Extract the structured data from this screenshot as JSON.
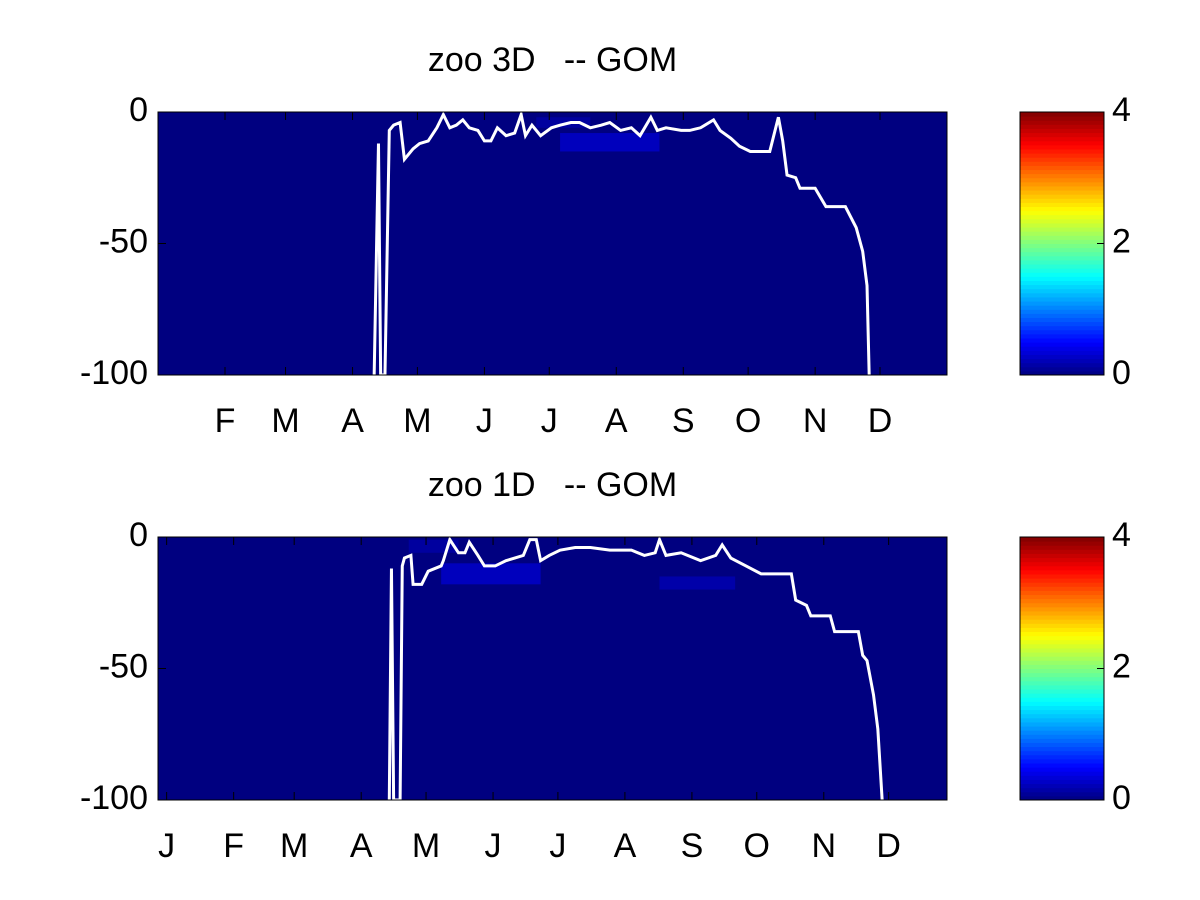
{
  "chart_data": [
    {
      "type": "heatmap",
      "title": "zoo 3D   -- GOM",
      "xlim": [
        0,
        365
      ],
      "xticks": [
        {
          "value": 31,
          "label": "F"
        },
        {
          "value": 59,
          "label": "M"
        },
        {
          "value": 90,
          "label": "A"
        },
        {
          "value": 120,
          "label": "M"
        },
        {
          "value": 151,
          "label": "J"
        },
        {
          "value": 181,
          "label": "J"
        },
        {
          "value": 212,
          "label": "A"
        },
        {
          "value": 243,
          "label": "S"
        },
        {
          "value": 273,
          "label": "O"
        },
        {
          "value": 304,
          "label": "N"
        },
        {
          "value": 334,
          "label": "D"
        }
      ],
      "ylim": [
        -100,
        0
      ],
      "yticks": [
        -100,
        -50,
        0
      ],
      "field": {
        "base": 0,
        "patches": [
          {
            "x": [
              186,
              232
            ],
            "y": [
              -15,
              -8
            ],
            "value": 0.3
          },
          {
            "x": [
              175,
              200
            ],
            "y": [
              -6,
              -2
            ],
            "value": 0.15
          }
        ]
      },
      "colorbar": {
        "colormap": "jet",
        "clim": [
          0,
          4
        ],
        "ticks": [
          0,
          2,
          4
        ]
      },
      "series": [
        {
          "color": "#ffffff",
          "x": [
            100,
            102,
            103,
            105,
            107,
            109,
            112,
            114,
            118,
            121,
            125,
            129,
            132,
            135,
            138,
            141,
            144,
            148,
            151,
            154,
            157,
            161,
            165,
            168,
            170,
            173,
            177,
            182,
            186,
            191,
            195,
            200,
            205,
            209,
            214,
            219,
            223,
            228,
            231,
            235,
            242,
            246,
            251,
            257,
            260,
            265,
            269,
            274,
            283,
            287,
            289,
            291,
            295,
            297,
            304,
            309,
            318,
            323,
            326,
            328,
            329
          ],
          "values": [
            -100,
            -12,
            -100,
            -100,
            -7,
            -5,
            -4,
            -18,
            -14,
            -12,
            -11,
            -6,
            -1,
            -6,
            -5,
            -3,
            -6,
            -7,
            -11,
            -11,
            -6,
            -9,
            -8,
            -1,
            -9,
            -5,
            -9,
            -6,
            -5,
            -4,
            -4,
            -6,
            -5,
            -4,
            -7,
            -6,
            -9,
            -2,
            -7,
            -6,
            -7,
            -7,
            -6,
            -3,
            -7,
            -10,
            -13,
            -15,
            -15,
            -2,
            -11,
            -24,
            -25,
            -29,
            -29,
            -36,
            -36,
            -44,
            -53,
            -66,
            -100
          ]
        }
      ]
    },
    {
      "type": "heatmap",
      "title": "zoo 1D   -- GOM",
      "xlim": [
        -4,
        361
      ],
      "xticks": [
        {
          "value": 0,
          "label": "J"
        },
        {
          "value": 31,
          "label": "F"
        },
        {
          "value": 59,
          "label": "M"
        },
        {
          "value": 90,
          "label": "A"
        },
        {
          "value": 120,
          "label": "M"
        },
        {
          "value": 151,
          "label": "J"
        },
        {
          "value": 181,
          "label": "J"
        },
        {
          "value": 212,
          "label": "A"
        },
        {
          "value": 243,
          "label": "S"
        },
        {
          "value": 273,
          "label": "O"
        },
        {
          "value": 304,
          "label": "N"
        },
        {
          "value": 334,
          "label": "D"
        }
      ],
      "ylim": [
        -100,
        0
      ],
      "yticks": [
        -100,
        -50,
        0
      ],
      "field": {
        "base": 0,
        "patches": [
          {
            "x": [
              127,
              173
            ],
            "y": [
              -18,
              -10
            ],
            "value": 0.3
          },
          {
            "x": [
              228,
              263
            ],
            "y": [
              -20,
              -15
            ],
            "value": 0.2
          },
          {
            "x": [
              112,
              135
            ],
            "y": [
              -6,
              -1
            ],
            "value": 0.15
          }
        ]
      },
      "colorbar": {
        "colormap": "jet",
        "clim": [
          0,
          4
        ],
        "ticks": [
          0,
          2,
          4
        ]
      },
      "series": [
        {
          "color": "#ffffff",
          "x": [
            103,
            104,
            105,
            108,
            109,
            110,
            113,
            114,
            118,
            121,
            127,
            128,
            131,
            135,
            138,
            140,
            144,
            147,
            152,
            157,
            161,
            165,
            168,
            171,
            173,
            177,
            182,
            189,
            196,
            205,
            215,
            221,
            226,
            228,
            231,
            238,
            247,
            254,
            257,
            261,
            268,
            275,
            289,
            291,
            296,
            298,
            307,
            309,
            320,
            322,
            324,
            327,
            329,
            331
          ],
          "values": [
            -100,
            -12,
            -100,
            -100,
            -11,
            -8,
            -7,
            -18,
            -18,
            -13,
            -11,
            -9,
            -1,
            -6,
            -6,
            -2,
            -7,
            -11,
            -11,
            -9,
            -8,
            -7,
            -1,
            -1,
            -9,
            -7,
            -5,
            -4,
            -4,
            -5,
            -5,
            -7,
            -6,
            -1,
            -7,
            -6,
            -9,
            -7,
            -3,
            -8,
            -11,
            -14,
            -14,
            -24,
            -26,
            -30,
            -30,
            -36,
            -36,
            -45,
            -47,
            -60,
            -73,
            -100
          ]
        }
      ]
    }
  ]
}
